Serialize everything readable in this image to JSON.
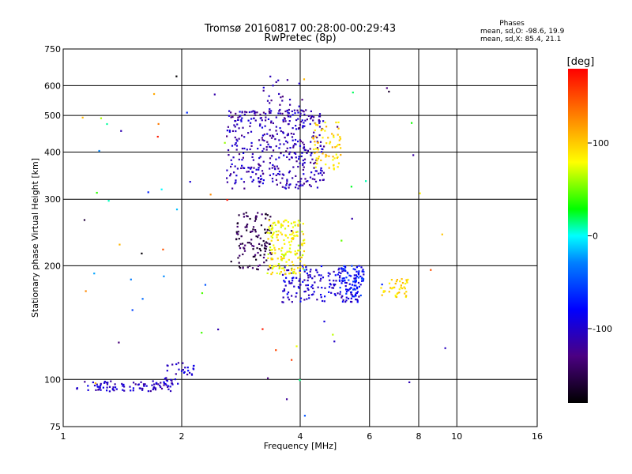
{
  "header": {
    "title": "Tromsø 20160817 00:28:00-00:29:43",
    "subtitle": "RwPretec (8p)",
    "phases_title": "Phases",
    "phases_o": "mean, sd,O: -98.6, 19.9",
    "phases_x": "mean, sd,X: 85.4, 21.1"
  },
  "chart_data": {
    "type": "scatter",
    "xlabel": "Frequency [MHz]",
    "ylabel": "Stationary phase Virtual Height [km]",
    "x_scale": "log",
    "y_scale": "log",
    "xlim": [
      1,
      16
    ],
    "ylim": [
      75,
      750
    ],
    "x_ticks": [
      1,
      2,
      4,
      6,
      8,
      10,
      16
    ],
    "y_ticks": [
      75,
      100,
      200,
      300,
      400,
      500,
      600,
      750
    ],
    "grid": true,
    "colorbar": {
      "label": "[deg]",
      "range": [
        -180,
        180
      ],
      "ticks": [
        100,
        0,
        -100
      ]
    },
    "clusters": [
      {
        "name": "low-echo",
        "xr": [
          1.08,
          1.9
        ],
        "yr": [
          93,
          99
        ],
        "n": 90,
        "phase": -105
      },
      {
        "name": "low-echo-2",
        "xr": [
          1.8,
          2.15
        ],
        "yr": [
          97,
          112
        ],
        "n": 35,
        "phase": -100
      },
      {
        "name": "E-region-O",
        "xr": [
          3.6,
          5.8
        ],
        "yr": [
          160,
          200
        ],
        "n": 180,
        "phase": -98
      },
      {
        "name": "F-low-O",
        "xr": [
          2.75,
          3.4
        ],
        "yr": [
          195,
          280
        ],
        "n": 120,
        "phase": -150
      },
      {
        "name": "F-X",
        "xr": [
          3.3,
          4.1
        ],
        "yr": [
          190,
          265
        ],
        "n": 170,
        "phase": 85
      },
      {
        "name": "F-mid-X",
        "xr": [
          6.4,
          7.6
        ],
        "yr": [
          165,
          185
        ],
        "n": 40,
        "phase": 95
      },
      {
        "name": "F2-O",
        "xr": [
          2.6,
          4.6
        ],
        "yr": [
          320,
          520
        ],
        "n": 420,
        "phase": -110
      },
      {
        "name": "F2-O-top",
        "xr": [
          3.2,
          4.1
        ],
        "yr": [
          500,
          640
        ],
        "n": 25,
        "phase": -115
      },
      {
        "name": "F2-X",
        "xr": [
          4.3,
          5.1
        ],
        "yr": [
          360,
          480
        ],
        "n": 70,
        "phase": 95
      },
      {
        "name": "F-mid-O",
        "xr": [
          5.0,
          5.8
        ],
        "yr": [
          165,
          200
        ],
        "n": 60,
        "phase": -70
      },
      {
        "name": "scatter",
        "xr": [
          1.1,
          9.5
        ],
        "yr": [
          80,
          640
        ],
        "n": 70,
        "phase": 0
      }
    ]
  },
  "colors": {
    "grid": "#000000",
    "background": "#ffffff"
  }
}
